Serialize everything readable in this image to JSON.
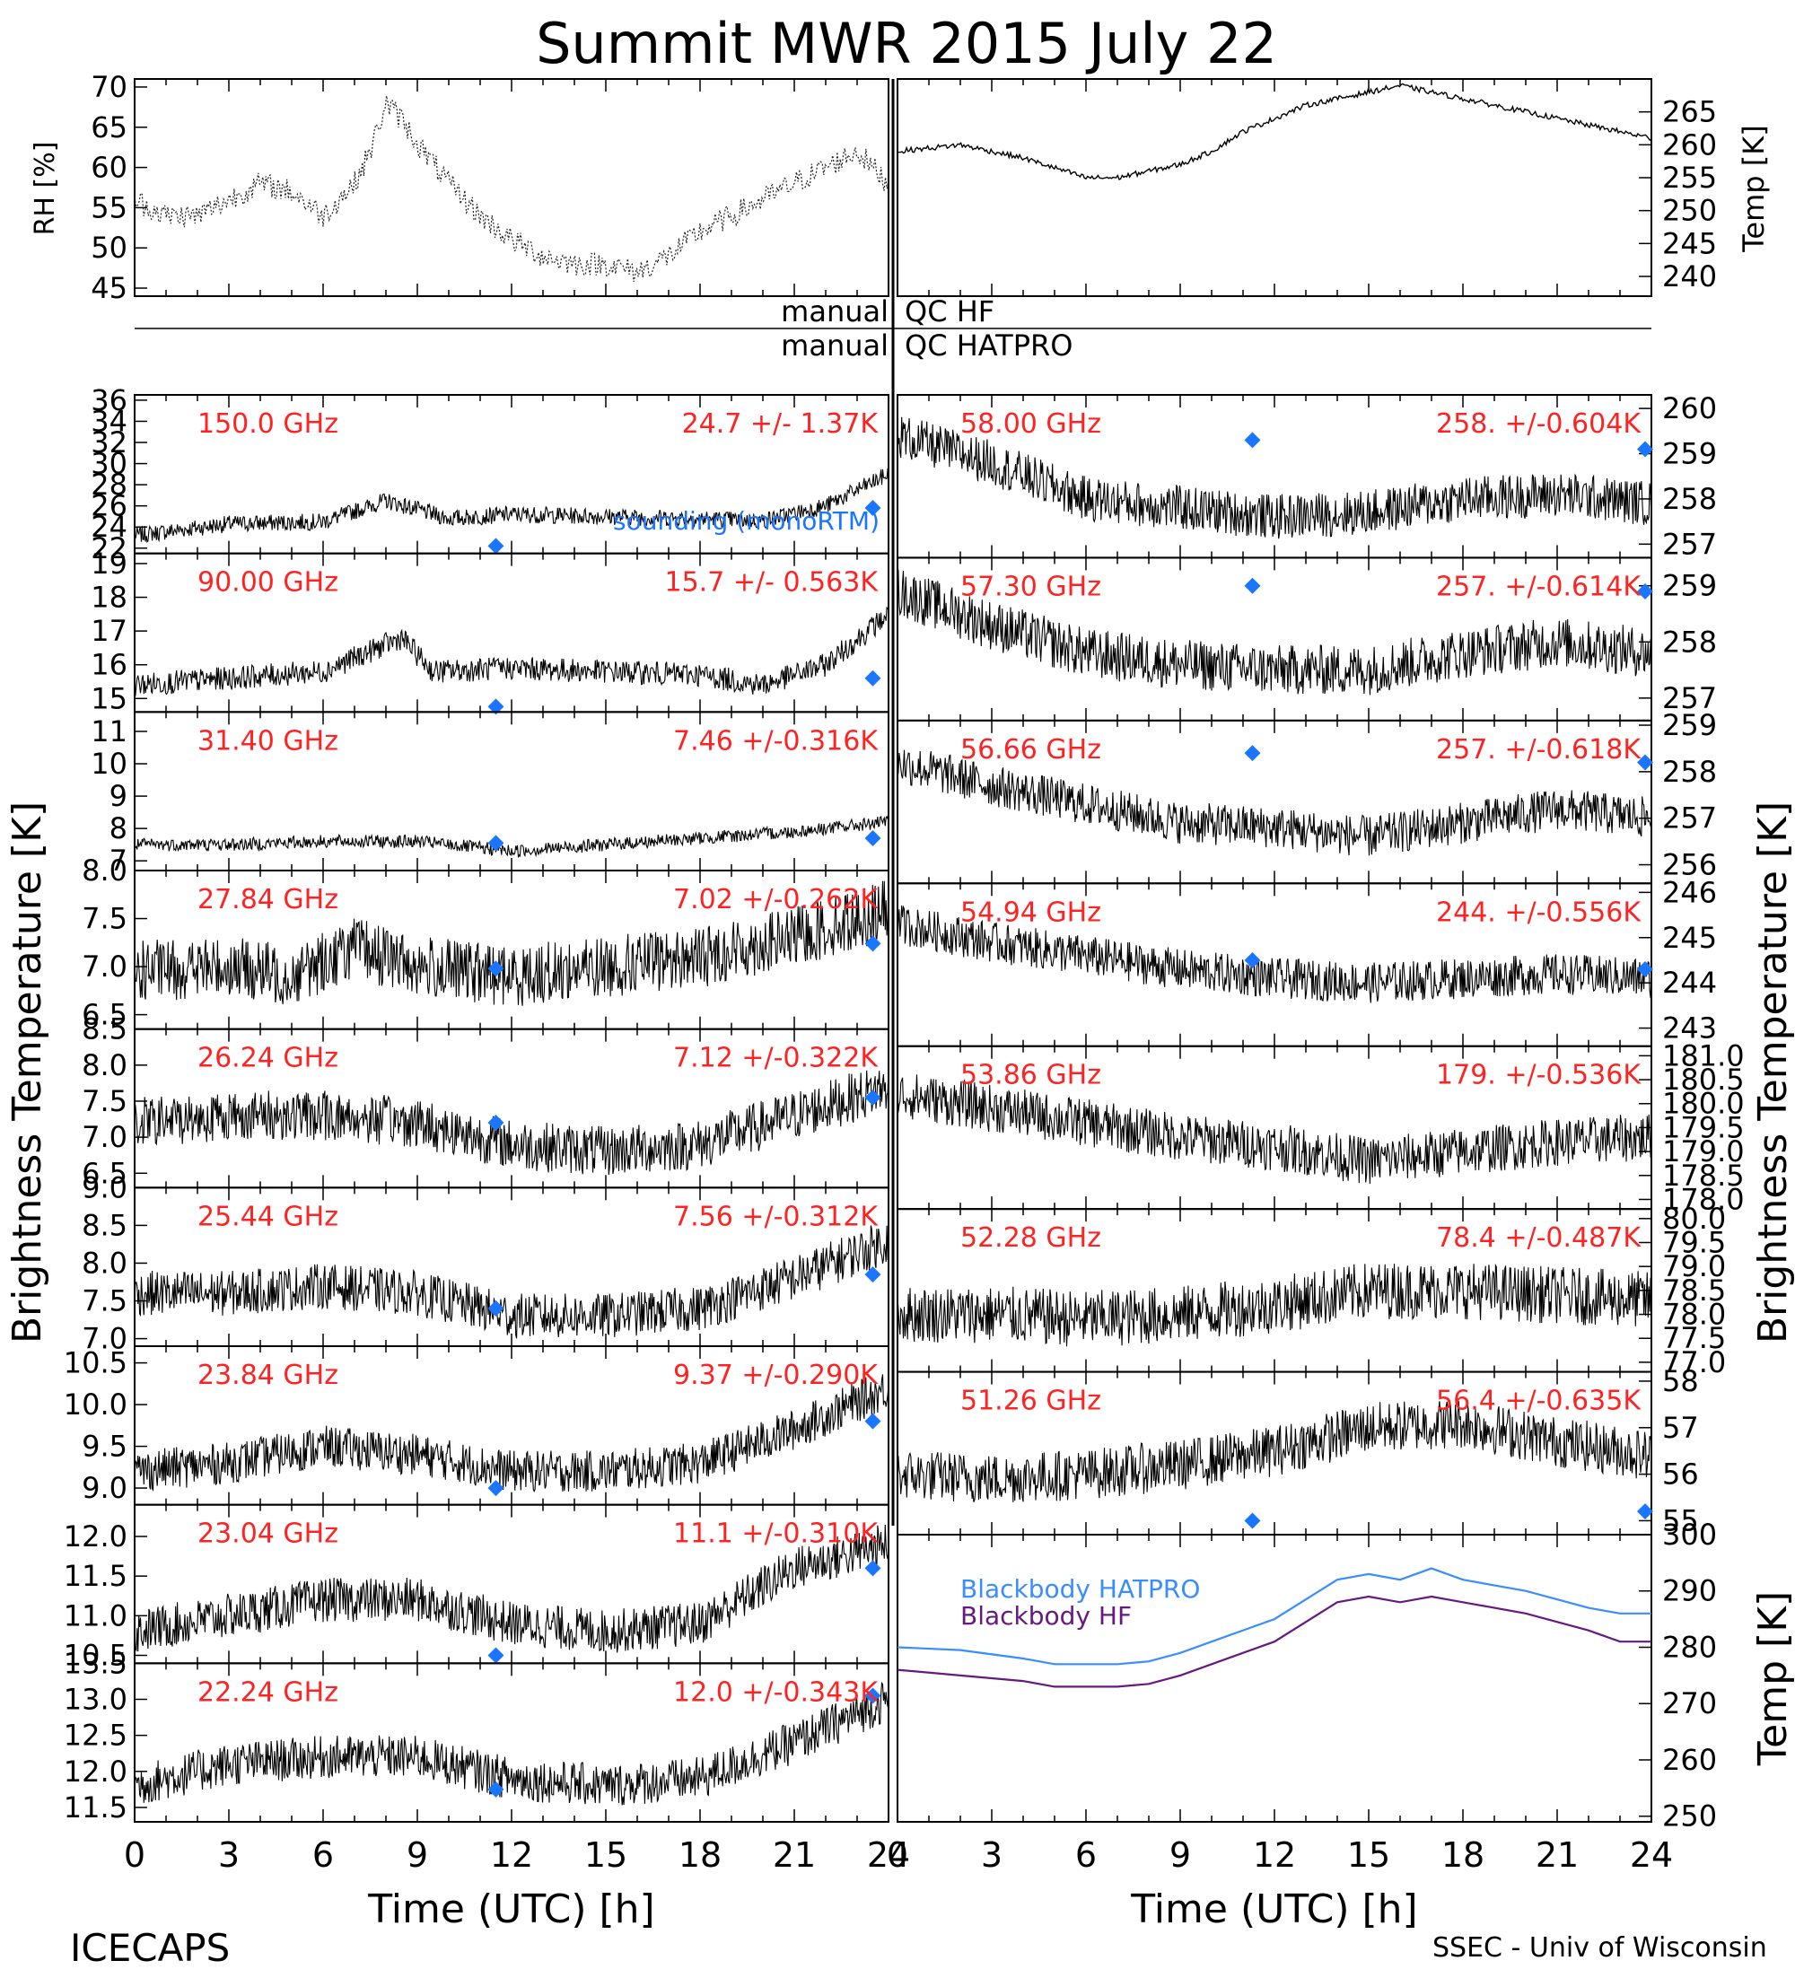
{
  "title": "Summit MWR 2015 July 22",
  "footer_left": "ICECAPS",
  "footer_right": "SSEC - Univ of Wisconsin",
  "x_axis": {
    "label": "Time (UTC) [h]",
    "range": [
      0,
      24
    ],
    "ticks": [
      "0",
      "3",
      "6",
      "9",
      "12",
      "15",
      "18",
      "21",
      "24"
    ]
  },
  "colors": {
    "freq_label": "#ff2222",
    "sounding": "#1a75ff",
    "bb_hatpro": "#3a8dff",
    "bb_hf": "#661a80",
    "trace": "#000000"
  },
  "left_ylabel": "Brightness Temperature [K]",
  "right_ylabel": "Brightness Temperature [K]",
  "met_panel": {
    "rh_label": "RH [%]",
    "rh_ticks": [
      "45",
      "50",
      "55",
      "60",
      "65",
      "70"
    ],
    "rh_range": [
      44,
      71
    ],
    "temp_label": "Temp [K]",
    "temp_ticks": [
      "240",
      "245",
      "250",
      "255",
      "260",
      "265"
    ],
    "temp_range": [
      237,
      270
    ]
  },
  "qc": {
    "line1_left": "manual",
    "line1_right": "QC HF",
    "line2_left": "manual",
    "line2_right": "QC HATPRO"
  },
  "sounding_label": "sounding (monoRTM)",
  "blackbody": {
    "hatpro_label": "Blackbody HATPRO",
    "hf_label": "Blackbody HF",
    "ylabel": "Temp [K]",
    "ticks": [
      "250",
      "260",
      "270",
      "280",
      "290",
      "300"
    ],
    "range": [
      249,
      300
    ]
  },
  "chart_data": [
    {
      "type": "line",
      "panel": "left",
      "freq": "150.0 GHz",
      "stat": "24.7 +/- 1.37K",
      "ticks": [
        "22",
        "24",
        "26",
        "28",
        "30",
        "32",
        "34",
        "36"
      ],
      "range": [
        21.5,
        36.5
      ],
      "base": [
        [
          0,
          23.2
        ],
        [
          3,
          24.3
        ],
        [
          6,
          24.5
        ],
        [
          8,
          26.5
        ],
        [
          10,
          24.8
        ],
        [
          12,
          25.2
        ],
        [
          15,
          25.0
        ],
        [
          18,
          24.8
        ],
        [
          20,
          24.6
        ],
        [
          22,
          26
        ],
        [
          24,
          29
        ]
      ],
      "noise": 0.8,
      "sounding": [
        [
          11.5,
          22.2
        ],
        [
          23.5,
          25.8
        ]
      ]
    },
    {
      "type": "line",
      "panel": "left",
      "freq": "90.00 GHz",
      "stat": "15.7 +/- 0.563K",
      "ticks": [
        "15",
        "16",
        "17",
        "18",
        "19"
      ],
      "range": [
        14.6,
        19.3
      ],
      "base": [
        [
          0,
          15.4
        ],
        [
          3,
          15.6
        ],
        [
          6,
          15.8
        ],
        [
          8.5,
          16.8
        ],
        [
          9.5,
          15.8
        ],
        [
          12,
          15.9
        ],
        [
          15,
          15.8
        ],
        [
          18,
          15.7
        ],
        [
          20,
          15.4
        ],
        [
          22,
          16
        ],
        [
          24,
          17.5
        ]
      ],
      "noise": 0.35,
      "sounding": [
        [
          11.5,
          14.7
        ],
        [
          23.5,
          15.6
        ]
      ]
    },
    {
      "type": "line",
      "panel": "left",
      "freq": "31.40 GHz",
      "stat": "7.46 +/-0.316K",
      "ticks": [
        "7",
        "8",
        "9",
        "10",
        "11"
      ],
      "range": [
        6.7,
        11.6
      ],
      "base": [
        [
          0,
          7.5
        ],
        [
          3,
          7.5
        ],
        [
          6,
          7.6
        ],
        [
          9,
          7.6
        ],
        [
          12,
          7.3
        ],
        [
          15,
          7.5
        ],
        [
          18,
          7.7
        ],
        [
          21,
          7.9
        ],
        [
          24,
          8.2
        ]
      ],
      "noise": 0.2,
      "sounding": [
        [
          11.5,
          7.55
        ],
        [
          23.5,
          7.7
        ]
      ]
    },
    {
      "type": "line",
      "panel": "left",
      "freq": "27.84 GHz",
      "stat": "7.02 +/-0.262K",
      "ticks": [
        "6.5",
        "7.0",
        "7.5",
        "8.0"
      ],
      "range": [
        6.35,
        8.0
      ],
      "base": [
        [
          0,
          6.95
        ],
        [
          3,
          7.0
        ],
        [
          5,
          6.9
        ],
        [
          7,
          7.2
        ],
        [
          9,
          7.0
        ],
        [
          12,
          6.9
        ],
        [
          15,
          7.0
        ],
        [
          18,
          7.1
        ],
        [
          21,
          7.3
        ],
        [
          24,
          7.6
        ]
      ],
      "noise": 0.32,
      "sounding": [
        [
          11.5,
          6.98
        ],
        [
          23.5,
          7.24
        ]
      ]
    },
    {
      "type": "line",
      "panel": "left",
      "freq": "26.24 GHz",
      "stat": "7.12 +/-0.322K",
      "ticks": [
        "6.5",
        "7.0",
        "7.5",
        "8.0",
        "8.5"
      ],
      "range": [
        6.3,
        8.5
      ],
      "base": [
        [
          0,
          7.2
        ],
        [
          3,
          7.3
        ],
        [
          6,
          7.3
        ],
        [
          9,
          7.2
        ],
        [
          12,
          6.9
        ],
        [
          15,
          6.8
        ],
        [
          18,
          6.9
        ],
        [
          21,
          7.3
        ],
        [
          24,
          7.7
        ]
      ],
      "noise": 0.35,
      "sounding": [
        [
          11.5,
          7.2
        ],
        [
          23.5,
          7.55
        ]
      ]
    },
    {
      "type": "line",
      "panel": "left",
      "freq": "25.44 GHz",
      "stat": "7.56 +/-0.312K",
      "ticks": [
        "7.0",
        "7.5",
        "8.0",
        "8.5",
        "9.0"
      ],
      "range": [
        6.9,
        9.0
      ],
      "base": [
        [
          0,
          7.6
        ],
        [
          3,
          7.6
        ],
        [
          6,
          7.7
        ],
        [
          9,
          7.6
        ],
        [
          12,
          7.3
        ],
        [
          15,
          7.3
        ],
        [
          18,
          7.4
        ],
        [
          21,
          7.8
        ],
        [
          24,
          8.3
        ]
      ],
      "noise": 0.3,
      "sounding": [
        [
          11.5,
          7.4
        ],
        [
          23.5,
          7.85
        ]
      ]
    },
    {
      "type": "line",
      "panel": "left",
      "freq": "23.84 GHz",
      "stat": "9.37 +/-0.290K",
      "ticks": [
        "9.0",
        "9.5",
        "10.0",
        "10.5"
      ],
      "range": [
        8.8,
        10.7
      ],
      "base": [
        [
          0,
          9.2
        ],
        [
          3,
          9.3
        ],
        [
          6,
          9.5
        ],
        [
          9,
          9.4
        ],
        [
          12,
          9.2
        ],
        [
          15,
          9.2
        ],
        [
          18,
          9.3
        ],
        [
          21,
          9.7
        ],
        [
          24,
          10.2
        ]
      ],
      "noise": 0.25,
      "sounding": [
        [
          11.5,
          9.0
        ],
        [
          23.5,
          9.8
        ]
      ]
    },
    {
      "type": "line",
      "panel": "left",
      "freq": "23.04 GHz",
      "stat": "11.1 +/-0.310K",
      "ticks": [
        "10.5",
        "11.0",
        "11.5",
        "12.0"
      ],
      "range": [
        10.4,
        12.4
      ],
      "base": [
        [
          0,
          10.8
        ],
        [
          3,
          11.0
        ],
        [
          6,
          11.2
        ],
        [
          9,
          11.2
        ],
        [
          12,
          10.9
        ],
        [
          15,
          10.8
        ],
        [
          18,
          10.9
        ],
        [
          21,
          11.6
        ],
        [
          24,
          11.9
        ]
      ],
      "noise": 0.28,
      "sounding": [
        [
          11.5,
          10.5
        ],
        [
          23.5,
          11.6
        ]
      ]
    },
    {
      "type": "line",
      "panel": "left",
      "freq": "22.24 GHz",
      "stat": "12.0 +/-0.343K",
      "ticks": [
        "11.5",
        "12.0",
        "12.5",
        "13.0",
        "13.5"
      ],
      "range": [
        11.3,
        13.5
      ],
      "base": [
        [
          0,
          11.8
        ],
        [
          3,
          12.1
        ],
        [
          6,
          12.2
        ],
        [
          9,
          12.2
        ],
        [
          12,
          11.9
        ],
        [
          15,
          11.8
        ],
        [
          18,
          11.9
        ],
        [
          21,
          12.4
        ],
        [
          24,
          13.0
        ]
      ],
      "noise": 0.3,
      "sounding": [
        [
          11.5,
          11.75
        ],
        [
          23.5,
          13.05
        ]
      ]
    },
    {
      "type": "line",
      "panel": "right",
      "freq": "58.00 GHz",
      "stat": "258. +/-0.604K",
      "ticks": [
        "257",
        "258",
        "259",
        "260"
      ],
      "range": [
        256.7,
        260.3
      ],
      "base": [
        [
          0,
          259.4
        ],
        [
          3,
          258.8
        ],
        [
          6,
          258.0
        ],
        [
          9,
          257.8
        ],
        [
          12,
          257.6
        ],
        [
          15,
          257.7
        ],
        [
          18,
          258.0
        ],
        [
          21,
          258.1
        ],
        [
          24,
          257.9
        ]
      ],
      "noise": 0.5,
      "sounding": [
        [
          11.3,
          259.3
        ],
        [
          23.8,
          259.1
        ]
      ]
    },
    {
      "type": "line",
      "panel": "right",
      "freq": "57.30 GHz",
      "stat": "257. +/-0.614K",
      "ticks": [
        "257",
        "258",
        "259"
      ],
      "range": [
        256.6,
        259.5
      ],
      "base": [
        [
          0,
          258.9
        ],
        [
          3,
          258.3
        ],
        [
          6,
          257.8
        ],
        [
          9,
          257.6
        ],
        [
          12,
          257.5
        ],
        [
          15,
          257.5
        ],
        [
          18,
          257.8
        ],
        [
          21,
          258.0
        ],
        [
          24,
          257.8
        ]
      ],
      "noise": 0.45,
      "sounding": [
        [
          11.3,
          259.0
        ],
        [
          23.8,
          258.9
        ]
      ]
    },
    {
      "type": "line",
      "panel": "right",
      "freq": "56.66 GHz",
      "stat": "257. +/-0.618K",
      "ticks": [
        "256",
        "257",
        "258",
        "259"
      ],
      "range": [
        255.6,
        259.1
      ],
      "base": [
        [
          0,
          258.2
        ],
        [
          3,
          257.7
        ],
        [
          6,
          257.3
        ],
        [
          9,
          256.9
        ],
        [
          12,
          256.8
        ],
        [
          15,
          256.6
        ],
        [
          18,
          256.9
        ],
        [
          21,
          257.2
        ],
        [
          24,
          257.0
        ]
      ],
      "noise": 0.45,
      "sounding": [
        [
          11.3,
          258.4
        ],
        [
          23.8,
          258.2
        ]
      ]
    },
    {
      "type": "line",
      "panel": "right",
      "freq": "54.94 GHz",
      "stat": "244. +/-0.556K",
      "ticks": [
        "243",
        "244",
        "245",
        "246"
      ],
      "range": [
        242.6,
        246.2
      ],
      "base": [
        [
          0,
          245.3
        ],
        [
          3,
          244.9
        ],
        [
          6,
          244.6
        ],
        [
          9,
          244.3
        ],
        [
          12,
          244.1
        ],
        [
          15,
          244.0
        ],
        [
          18,
          244.1
        ],
        [
          21,
          244.2
        ],
        [
          24,
          244.1
        ]
      ],
      "noise": 0.45,
      "sounding": [
        [
          11.3,
          244.5
        ],
        [
          23.8,
          244.3
        ]
      ]
    },
    {
      "type": "line",
      "panel": "right",
      "freq": "53.86 GHz",
      "stat": "179. +/-0.536K",
      "ticks": [
        "178.0",
        "178.5",
        "179.0",
        "179.5",
        "180.0",
        "180.5",
        "181.0"
      ],
      "range": [
        177.8,
        181.2
      ],
      "base": [
        [
          0,
          180.2
        ],
        [
          3,
          179.9
        ],
        [
          6,
          179.6
        ],
        [
          9,
          179.3
        ],
        [
          12,
          179.1
        ],
        [
          15,
          178.8
        ],
        [
          18,
          179.0
        ],
        [
          21,
          179.2
        ],
        [
          24,
          179.3
        ]
      ],
      "noise": 0.5,
      "sounding": []
    },
    {
      "type": "line",
      "panel": "right",
      "freq": "52.28 GHz",
      "stat": "78.4 +/-0.487K",
      "ticks": [
        "77.0",
        "77.5",
        "78.0",
        "78.5",
        "79.0",
        "79.5",
        "80.0"
      ],
      "range": [
        76.8,
        80.2
      ],
      "base": [
        [
          0,
          78.0
        ],
        [
          3,
          78.0
        ],
        [
          6,
          77.9
        ],
        [
          9,
          78.0
        ],
        [
          12,
          78.2
        ],
        [
          15,
          78.5
        ],
        [
          18,
          78.5
        ],
        [
          21,
          78.4
        ],
        [
          24,
          78.3
        ]
      ],
      "noise": 0.6,
      "sounding": []
    },
    {
      "type": "line",
      "panel": "right",
      "freq": "51.26 GHz",
      "stat": "56.4 +/-0.635K",
      "ticks": [
        "55",
        "56",
        "57",
        "58"
      ],
      "range": [
        54.7,
        58.2
      ],
      "base": [
        [
          0,
          56.0
        ],
        [
          3,
          55.9
        ],
        [
          6,
          56.0
        ],
        [
          9,
          56.2
        ],
        [
          12,
          56.5
        ],
        [
          15,
          57.0
        ],
        [
          18,
          57.1
        ],
        [
          21,
          56.7
        ],
        [
          24,
          56.4
        ]
      ],
      "noise": 0.55,
      "sounding": [
        [
          11.3,
          55.0
        ],
        [
          23.8,
          55.2
        ]
      ]
    },
    {
      "type": "line",
      "panel": "right",
      "name": "Blackbody HATPRO",
      "blackbody": "hatpro",
      "x": [
        0,
        2,
        4,
        5,
        7,
        8,
        9,
        10,
        12,
        14,
        15,
        16,
        17,
        18,
        20,
        22,
        23,
        24
      ],
      "y": [
        280,
        279.5,
        278,
        277,
        277,
        277.5,
        279,
        281,
        285,
        292,
        293,
        292,
        294,
        292,
        290,
        287,
        286,
        286
      ]
    },
    {
      "type": "line",
      "panel": "right",
      "name": "Blackbody HF",
      "blackbody": "hf",
      "x": [
        0,
        2,
        4,
        5,
        7,
        8,
        9,
        10,
        12,
        14,
        15,
        16,
        17,
        18,
        20,
        22,
        23,
        24
      ],
      "y": [
        276,
        275,
        274,
        273,
        273,
        273.5,
        275,
        277,
        281,
        288,
        289,
        288,
        289,
        288,
        286,
        283,
        281,
        281
      ]
    },
    {
      "type": "line",
      "name": "RH",
      "met": "rh",
      "x": [
        0,
        1,
        2,
        3,
        4,
        5,
        6,
        7,
        7.5,
        8,
        8.5,
        9,
        10,
        11,
        12,
        13,
        14,
        15,
        16,
        17,
        18,
        19,
        20,
        21,
        22,
        23,
        24
      ],
      "y": [
        56,
        54,
        54,
        56,
        58,
        57,
        54,
        58,
        62,
        68,
        66,
        63,
        58,
        54,
        51,
        49,
        48,
        48,
        47,
        49,
        52,
        54,
        56,
        58,
        60,
        62,
        58
      ]
    },
    {
      "type": "line",
      "name": "Temp",
      "met": "temp",
      "x": [
        0,
        2,
        4,
        6,
        7,
        8,
        9,
        10,
        11,
        12,
        13,
        14,
        15,
        16,
        17,
        18,
        19,
        20,
        21,
        22,
        23,
        24
      ],
      "y": [
        259,
        260,
        258,
        255,
        255,
        256,
        257,
        259,
        262,
        264,
        266,
        267,
        268,
        269,
        268,
        267,
        266,
        265,
        264,
        263,
        262,
        261
      ]
    }
  ]
}
